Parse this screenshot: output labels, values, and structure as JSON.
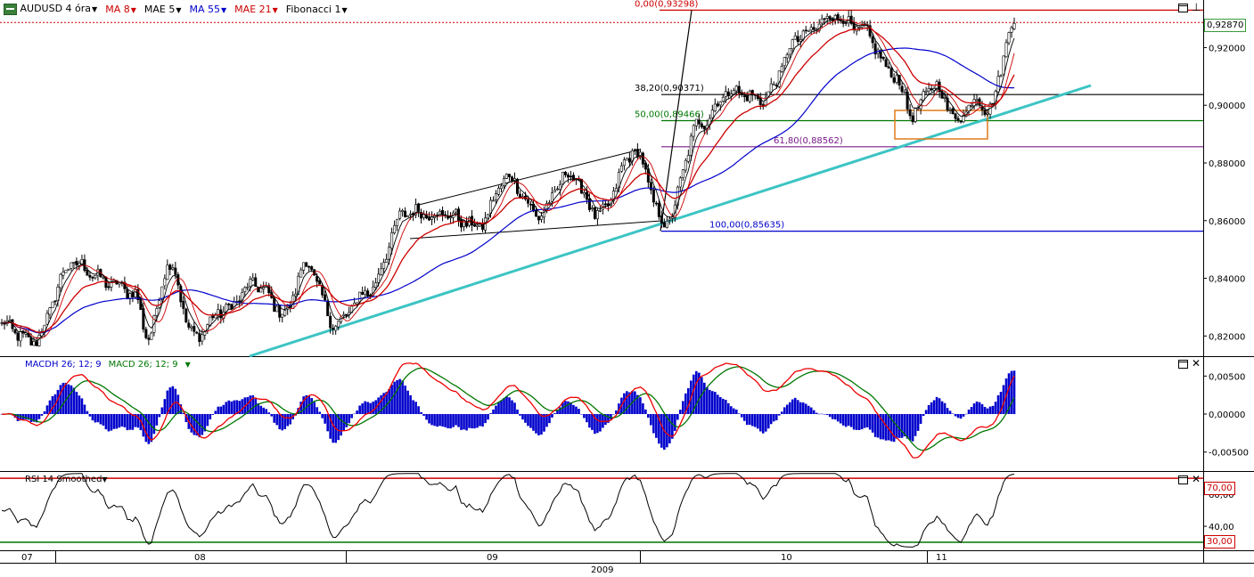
{
  "toolbar": {
    "symbol": "AUDUSD 4 óra",
    "indicators": [
      {
        "label": "MA 8",
        "color": "#cc0000"
      },
      {
        "label": "MAE 5",
        "color": "#000000"
      },
      {
        "label": "MA 55",
        "color": "#0000cc"
      },
      {
        "label": "MAE 21",
        "color": "#cc0000"
      },
      {
        "label": "Fibonacci 1",
        "color": "#000000"
      }
    ]
  },
  "macd_panel": {
    "label_h": "MACDH 26; 12; 9",
    "label_m": "MACD 26; 12; 9"
  },
  "rsi_panel": {
    "label": "RSI 14 Smoothed"
  },
  "colors": {
    "accent_red": "#cc0000",
    "blue": "#0000cc",
    "green": "#007700",
    "cyan": "#3cc4c4",
    "orange": "#e07a1a",
    "purple": "#7a1a8a"
  },
  "chart_data": [
    {
      "type": "candlestick",
      "title": "AUDUSD 4 óra",
      "x_axis": {
        "months": [
          "07",
          "08",
          "09",
          "10",
          "11"
        ],
        "year": "2009"
      },
      "y_axis": {
        "ticks": [
          "0,82000",
          "0,84000",
          "0,86000",
          "0,88000",
          "0,90000",
          "0,92000"
        ],
        "ylim": [
          0.813,
          0.9365
        ]
      },
      "last_price": "0,92870",
      "series": [
        {
          "name": "MA 8",
          "color": "#cc0000"
        },
        {
          "name": "MAE 5",
          "color": "#000000"
        },
        {
          "name": "MA 55",
          "color": "#0000cc"
        },
        {
          "name": "MAE 21",
          "color": "#cc0000"
        }
      ],
      "fibonacci": [
        {
          "label": "0,00(0,93298)",
          "value": 0.93298,
          "color": "#cc0000"
        },
        {
          "label": "38,20(0,90371)",
          "value": 0.90371,
          "color": "#000000"
        },
        {
          "label": "50,00(0,89466)",
          "value": 0.89466,
          "color": "#007700"
        },
        {
          "label": "61,80(0,88562)",
          "value": 0.88562,
          "color": "#7a1a8a"
        },
        {
          "label": "100,00(0,85635)",
          "value": 0.85635,
          "color": "#0000cc"
        }
      ],
      "anchors": [
        {
          "t": 0.0,
          "v": 0.824
        },
        {
          "t": 0.03,
          "v": 0.818
        },
        {
          "t": 0.07,
          "v": 0.845
        },
        {
          "t": 0.11,
          "v": 0.838
        },
        {
          "t": 0.13,
          "v": 0.835
        },
        {
          "t": 0.145,
          "v": 0.82
        },
        {
          "t": 0.165,
          "v": 0.845
        },
        {
          "t": 0.19,
          "v": 0.82
        },
        {
          "t": 0.22,
          "v": 0.829
        },
        {
          "t": 0.25,
          "v": 0.838
        },
        {
          "t": 0.28,
          "v": 0.828
        },
        {
          "t": 0.3,
          "v": 0.845
        },
        {
          "t": 0.33,
          "v": 0.824
        },
        {
          "t": 0.36,
          "v": 0.835
        },
        {
          "t": 0.4,
          "v": 0.863
        },
        {
          "t": 0.44,
          "v": 0.862
        },
        {
          "t": 0.47,
          "v": 0.858
        },
        {
          "t": 0.5,
          "v": 0.875
        },
        {
          "t": 0.53,
          "v": 0.862
        },
        {
          "t": 0.56,
          "v": 0.876
        },
        {
          "t": 0.59,
          "v": 0.862
        },
        {
          "t": 0.625,
          "v": 0.884
        },
        {
          "t": 0.655,
          "v": 0.859
        },
        {
          "t": 0.69,
          "v": 0.894
        },
        {
          "t": 0.72,
          "v": 0.905
        },
        {
          "t": 0.75,
          "v": 0.902
        },
        {
          "t": 0.79,
          "v": 0.924
        },
        {
          "t": 0.82,
          "v": 0.931
        },
        {
          "t": 0.85,
          "v": 0.926
        },
        {
          "t": 0.88,
          "v": 0.911
        },
        {
          "t": 0.9,
          "v": 0.897
        },
        {
          "t": 0.92,
          "v": 0.907
        },
        {
          "t": 0.945,
          "v": 0.895
        },
        {
          "t": 0.96,
          "v": 0.902
        },
        {
          "t": 0.975,
          "v": 0.899
        },
        {
          "t": 1.0,
          "v": 0.9287
        }
      ]
    },
    {
      "type": "line",
      "title": "MACD 26; 12; 9",
      "y_axis": {
        "ticks": [
          "0,00500",
          "0,00000",
          "-0,00500"
        ],
        "ylim": [
          -0.0075,
          0.0075
        ]
      },
      "series": [
        {
          "name": "MACD 26; 12; 9",
          "color": "#007700"
        },
        {
          "name": "MACDH 26; 12; 9",
          "color": "#0000cc"
        }
      ]
    },
    {
      "type": "line",
      "title": "RSI 14 Smoothed",
      "y_axis": {
        "ticks": [
          "60,00",
          "40,00"
        ],
        "ylim": [
          25,
          74
        ]
      },
      "levels": [
        {
          "label": "70,00",
          "value": 70,
          "color": "#cc0000"
        },
        {
          "label": "30,00",
          "value": 30,
          "color": "#007700"
        }
      ]
    }
  ]
}
